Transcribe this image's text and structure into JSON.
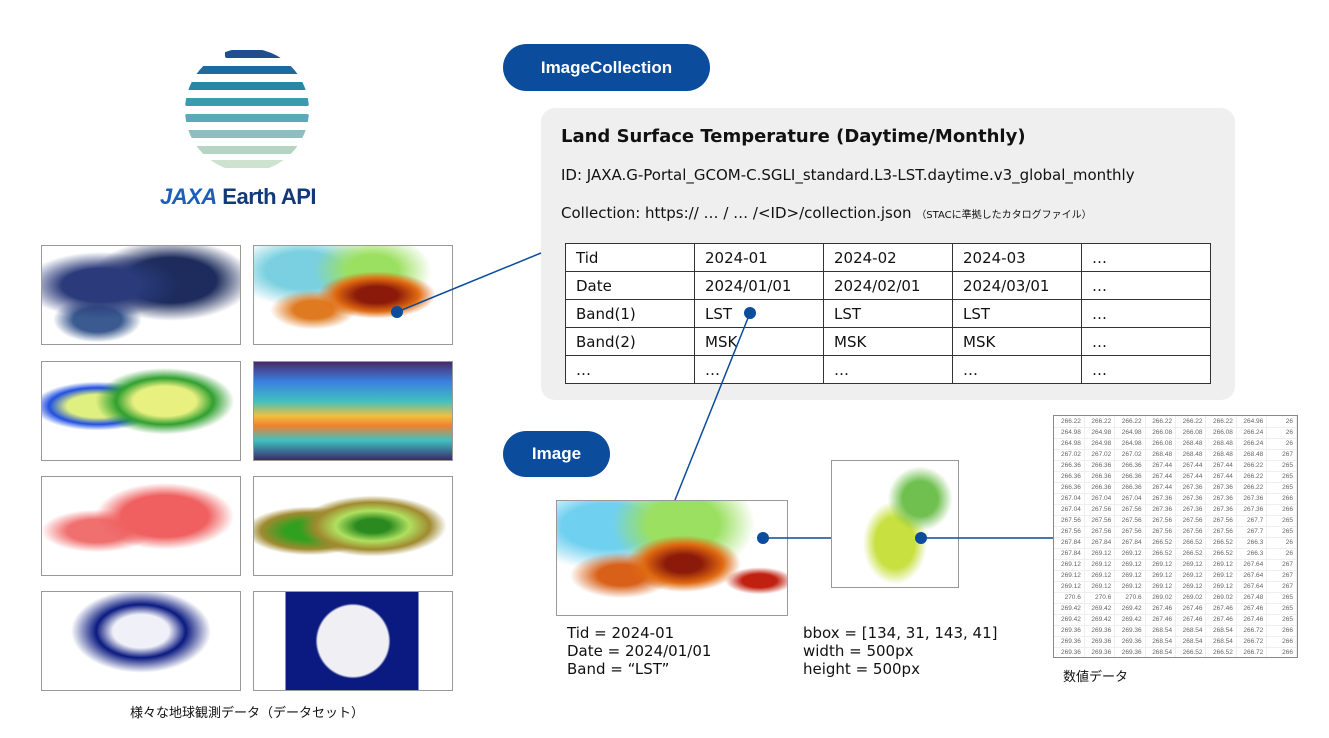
{
  "logo": {
    "name": "JAXA Earth API",
    "mark": "JAXA",
    "text": "Earth API"
  },
  "datasets_caption": "様々な地球観測データ（データセット）",
  "collection": {
    "pill": "ImageCollection",
    "title": "Land Surface Temperature (Daytime/Monthly)",
    "id_line": "ID: JAXA.G-Portal_GCOM-C.SGLI_standard.L3-LST.daytime.v3_global_monthly",
    "collection_line": "Collection: https:// … / … /<ID>/collection.json",
    "collection_note": "（STACに準拠したカタログファイル）",
    "table": [
      [
        "Tid",
        "2024-01",
        "2024-02",
        "2024-03",
        "…"
      ],
      [
        "Date",
        "2024/01/01",
        "2024/02/01",
        "2024/03/01",
        "…"
      ],
      [
        "Band(1)",
        "LST",
        "LST",
        "LST",
        "…"
      ],
      [
        "Band(2)",
        "MSK",
        "MSK",
        "MSK",
        "…"
      ],
      [
        "…",
        "…",
        "…",
        "…",
        "…"
      ]
    ]
  },
  "image": {
    "pill": "Image",
    "tid": "Tid = 2024-01",
    "date": "Date = 2024/01/01",
    "band": "Band = “LST”"
  },
  "subset": {
    "bbox": "bbox = [134, 31, 143, 41]",
    "width": "width = 500px",
    "height": "height = 500px"
  },
  "numeric": {
    "label": "数値データ",
    "rows": [
      [
        "266.22",
        "266.22",
        "266.22",
        "266.22",
        "266.22",
        "266.22",
        "264.96",
        "26"
      ],
      [
        "264.98",
        "264.98",
        "264.98",
        "266.08",
        "266.08",
        "266.08",
        "266.24",
        "26"
      ],
      [
        "264.98",
        "264.98",
        "264.98",
        "266.08",
        "268.48",
        "268.48",
        "266.24",
        "26"
      ],
      [
        "267.02",
        "267.02",
        "267.02",
        "268.48",
        "268.48",
        "268.48",
        "268.48",
        "267"
      ],
      [
        "266.36",
        "266.36",
        "266.36",
        "267.44",
        "267.44",
        "267.44",
        "266.22",
        "265"
      ],
      [
        "266.36",
        "266.36",
        "266.36",
        "267.44",
        "267.44",
        "267.44",
        "266.22",
        "265"
      ],
      [
        "266.36",
        "266.36",
        "266.36",
        "267.44",
        "267.36",
        "267.36",
        "266.22",
        "265"
      ],
      [
        "267.04",
        "267.04",
        "267.04",
        "267.36",
        "267.36",
        "267.36",
        "267.36",
        "266"
      ],
      [
        "267.04",
        "267.56",
        "267.56",
        "267.36",
        "267.36",
        "267.36",
        "267.36",
        "266"
      ],
      [
        "267.56",
        "267.56",
        "267.56",
        "267.56",
        "267.56",
        "267.56",
        "267.7",
        "265"
      ],
      [
        "267.56",
        "267.56",
        "267.56",
        "267.56",
        "267.56",
        "267.56",
        "267.7",
        "265"
      ],
      [
        "267.84",
        "267.84",
        "267.84",
        "266.52",
        "266.52",
        "266.52",
        "266.3",
        "26"
      ],
      [
        "267.84",
        "269.12",
        "269.12",
        "266.52",
        "266.52",
        "266.52",
        "266.3",
        "26"
      ],
      [
        "269.12",
        "269.12",
        "269.12",
        "269.12",
        "269.12",
        "269.12",
        "267.64",
        "267"
      ],
      [
        "269.12",
        "269.12",
        "269.12",
        "269.12",
        "269.12",
        "269.12",
        "267.64",
        "267"
      ],
      [
        "269.12",
        "269.12",
        "269.12",
        "269.12",
        "269.12",
        "269.12",
        "267.64",
        "267"
      ],
      [
        "270.6",
        "270.6",
        "270.6",
        "269.02",
        "269.02",
        "269.02",
        "267.48",
        "265"
      ],
      [
        "269.42",
        "269.42",
        "269.42",
        "267.46",
        "267.46",
        "267.46",
        "267.46",
        "265"
      ],
      [
        "269.42",
        "269.42",
        "269.42",
        "267.46",
        "267.46",
        "267.46",
        "267.46",
        "265"
      ],
      [
        "269.36",
        "269.36",
        "269.36",
        "268.54",
        "268.54",
        "268.54",
        "266.72",
        "266"
      ],
      [
        "269.36",
        "269.36",
        "269.36",
        "268.54",
        "268.54",
        "268.54",
        "266.72",
        "266"
      ],
      [
        "269.36",
        "269.36",
        "269.36",
        "268.54",
        "266.52",
        "266.52",
        "266.72",
        "266"
      ]
    ]
  },
  "colors": {
    "accent": "#0b4c9c",
    "card": "#efefef"
  }
}
